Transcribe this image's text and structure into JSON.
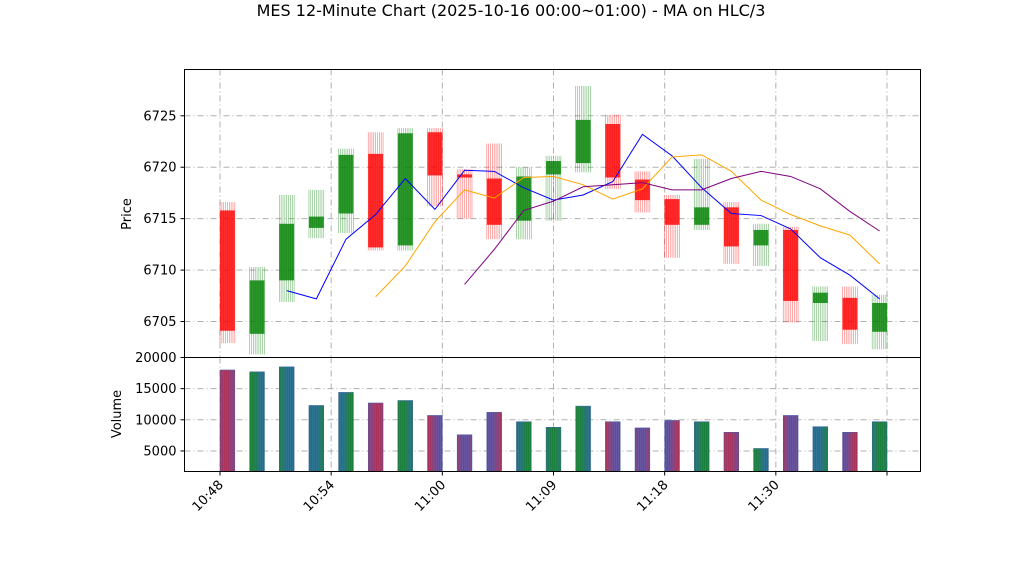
{
  "title": "MES 12-Minute Chart (2025-10-16 00:00~01:00) - MA on HLC/3",
  "chart_data": {
    "type": "candlestick",
    "title": "MES 12-Minute Chart (2025-10-16 00:00~01:00) - MA on HLC/3",
    "price_panel": {
      "ylabel": "Price",
      "ylim": [
        6701.5,
        6729.5
      ],
      "yticks": [
        6705,
        6710,
        6715,
        6720,
        6725
      ],
      "grid": true
    },
    "volume_panel": {
      "ylabel": "Volume",
      "ylim": [
        1700,
        20000
      ],
      "yticks": [
        5000,
        10000,
        15000,
        20000
      ],
      "grid": true
    },
    "x_tick_labels": [
      "10:48",
      "10:54",
      "11:00",
      "11:09",
      "11:18",
      "11:30"
    ],
    "candles": [
      {
        "open": 6715.8,
        "high": 6716.6,
        "low": 6702.9,
        "close": 6704.1,
        "volume": 18000
      },
      {
        "open": 6703.8,
        "high": 6710.3,
        "low": 6701.8,
        "close": 6709.0,
        "volume": 17700
      },
      {
        "open": 6709.0,
        "high": 6717.3,
        "low": 6706.9,
        "close": 6714.5,
        "volume": 18500
      },
      {
        "open": 6714.1,
        "high": 6717.8,
        "low": 6713.1,
        "close": 6715.2,
        "volume": 12300
      },
      {
        "open": 6715.5,
        "high": 6721.8,
        "low": 6713.6,
        "close": 6721.2,
        "volume": 14400
      },
      {
        "open": 6721.3,
        "high": 6723.4,
        "low": 6711.9,
        "close": 6712.2,
        "volume": 12700
      },
      {
        "open": 6712.4,
        "high": 6723.8,
        "low": 6711.9,
        "close": 6723.3,
        "volume": 13100
      },
      {
        "open": 6723.4,
        "high": 6723.8,
        "low": 6716.2,
        "close": 6719.2,
        "volume": 10700
      },
      {
        "open": 6719.3,
        "high": 6719.8,
        "low": 6715.0,
        "close": 6719.0,
        "volume": 7600
      },
      {
        "open": 6718.9,
        "high": 6722.3,
        "low": 6713.0,
        "close": 6714.4,
        "volume": 11200
      },
      {
        "open": 6714.8,
        "high": 6720.0,
        "low": 6713.0,
        "close": 6719.1,
        "volume": 9700
      },
      {
        "open": 6719.3,
        "high": 6721.1,
        "low": 6714.8,
        "close": 6720.6,
        "volume": 8800
      },
      {
        "open": 6720.4,
        "high": 6727.9,
        "low": 6719.5,
        "close": 6724.6,
        "volume": 12200
      },
      {
        "open": 6724.2,
        "high": 6725.1,
        "low": 6717.9,
        "close": 6719.0,
        "volume": 9700
      },
      {
        "open": 6718.8,
        "high": 6719.6,
        "low": 6715.6,
        "close": 6716.8,
        "volume": 8700
      },
      {
        "open": 6716.9,
        "high": 6717.3,
        "low": 6711.2,
        "close": 6714.4,
        "volume": 9900
      },
      {
        "open": 6714.4,
        "high": 6720.8,
        "low": 6713.9,
        "close": 6716.1,
        "volume": 9700
      },
      {
        "open": 6716.1,
        "high": 6716.6,
        "low": 6710.6,
        "close": 6712.3,
        "volume": 8000
      },
      {
        "open": 6712.4,
        "high": 6714.5,
        "low": 6710.4,
        "close": 6713.9,
        "volume": 5400
      },
      {
        "open": 6713.9,
        "high": 6714.2,
        "low": 6704.9,
        "close": 6707.0,
        "volume": 10700
      },
      {
        "open": 6706.8,
        "high": 6708.4,
        "low": 6703.1,
        "close": 6707.8,
        "volume": 8900
      },
      {
        "open": 6707.3,
        "high": 6708.4,
        "low": 6702.8,
        "close": 6704.2,
        "volume": 8000
      },
      {
        "open": 6704.0,
        "high": 6707.6,
        "low": 6702.3,
        "close": 6706.8,
        "volume": 9700
      }
    ],
    "ma_lines": [
      {
        "color": "#0000ff",
        "values": [
          6708.0,
          6707.2,
          6713.0,
          6715.4,
          6718.9,
          6715.9,
          6719.7,
          6719.6,
          6718.0,
          6716.8,
          6717.3,
          6718.6,
          6723.2,
          6721.1,
          6718.0,
          6715.5,
          6715.3,
          6714.0,
          6711.2,
          6709.5,
          6707.2
        ]
      },
      {
        "color": "#ffa500",
        "values": [
          6707.4,
          6710.4,
          6714.7,
          6717.8,
          6717.0,
          6719.0,
          6719.1,
          6718.3,
          6716.9,
          6717.9,
          6721.0,
          6721.2,
          6719.6,
          6716.8,
          6715.4,
          6714.3,
          6713.4,
          6710.6
        ]
      },
      {
        "color": "#800080",
        "values": [
          6708.6,
          6712.0,
          6715.8,
          6716.7,
          6718.1,
          6718.3,
          6718.5,
          6717.8,
          6717.8,
          6718.9,
          6719.6,
          6719.1,
          6717.9,
          6715.7,
          6713.8
        ]
      }
    ],
    "up_color": "#008000",
    "down_color": "#ff0000"
  }
}
